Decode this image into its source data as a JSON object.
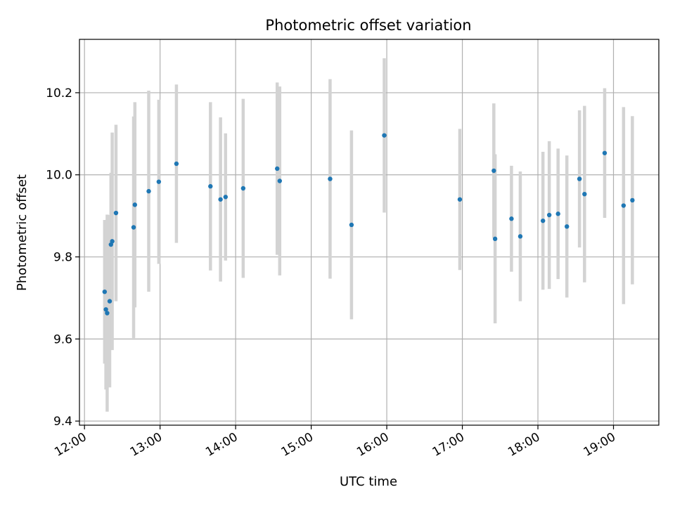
{
  "chart_data": {
    "type": "scatter",
    "title": "Photometric offset variation",
    "xlabel": "UTC time",
    "ylabel": "Photometric offset",
    "x_ticks": [
      "12:00",
      "13:00",
      "14:00",
      "15:00",
      "16:00",
      "17:00",
      "18:00",
      "19:00"
    ],
    "y_ticks": [
      "9.4",
      "9.6",
      "9.8",
      "10.0",
      "10.2"
    ],
    "xlim": [
      "11:56",
      "19:36"
    ],
    "ylim": [
      9.39,
      10.33
    ],
    "grid": true,
    "colors": {
      "point": "#1f77b4",
      "errorbar": "#d3d3d3",
      "grid": "#b0b0b0"
    },
    "points": [
      {
        "x": "12:16",
        "y": 9.715,
        "err": 0.175
      },
      {
        "x": "12:17",
        "y": 9.672,
        "err": 0.195
      },
      {
        "x": "12:18",
        "y": 9.663,
        "err": 0.24
      },
      {
        "x": "12:20",
        "y": 9.692,
        "err": 0.21
      },
      {
        "x": "12:21",
        "y": 9.83,
        "err": 0.175
      },
      {
        "x": "12:22",
        "y": 9.838,
        "err": 0.265
      },
      {
        "x": "12:25",
        "y": 9.907,
        "err": 0.215
      },
      {
        "x": "12:39",
        "y": 9.872,
        "err": 0.27
      },
      {
        "x": "12:40",
        "y": 9.927,
        "err": 0.25
      },
      {
        "x": "12:51",
        "y": 9.96,
        "err": 0.245
      },
      {
        "x": "12:59",
        "y": 9.983,
        "err": 0.2
      },
      {
        "x": "13:13",
        "y": 10.027,
        "err": 0.193
      },
      {
        "x": "13:40",
        "y": 9.972,
        "err": 0.205
      },
      {
        "x": "13:48",
        "y": 9.94,
        "err": 0.2
      },
      {
        "x": "13:52",
        "y": 9.946,
        "err": 0.155
      },
      {
        "x": "14:06",
        "y": 9.967,
        "err": 0.218
      },
      {
        "x": "14:33",
        "y": 10.015,
        "err": 0.21
      },
      {
        "x": "14:35",
        "y": 9.985,
        "err": 0.23
      },
      {
        "x": "15:15",
        "y": 9.99,
        "err": 0.243
      },
      {
        "x": "15:32",
        "y": 9.878,
        "err": 0.23
      },
      {
        "x": "15:58",
        "y": 10.096,
        "err": 0.188
      },
      {
        "x": "16:58",
        "y": 9.94,
        "err": 0.172
      },
      {
        "x": "17:25",
        "y": 10.01,
        "err": 0.164
      },
      {
        "x": "17:26",
        "y": 9.844,
        "err": 0.206
      },
      {
        "x": "17:39",
        "y": 9.893,
        "err": 0.129
      },
      {
        "x": "17:46",
        "y": 9.85,
        "err": 0.158
      },
      {
        "x": "18:04",
        "y": 9.888,
        "err": 0.168
      },
      {
        "x": "18:09",
        "y": 9.902,
        "err": 0.18
      },
      {
        "x": "18:16",
        "y": 9.905,
        "err": 0.159
      },
      {
        "x": "18:23",
        "y": 9.874,
        "err": 0.173
      },
      {
        "x": "18:33",
        "y": 9.99,
        "err": 0.167
      },
      {
        "x": "18:37",
        "y": 9.953,
        "err": 0.215
      },
      {
        "x": "18:53",
        "y": 10.053,
        "err": 0.158
      },
      {
        "x": "19:08",
        "y": 9.925,
        "err": 0.24
      },
      {
        "x": "19:15",
        "y": 9.938,
        "err": 0.205
      }
    ]
  }
}
